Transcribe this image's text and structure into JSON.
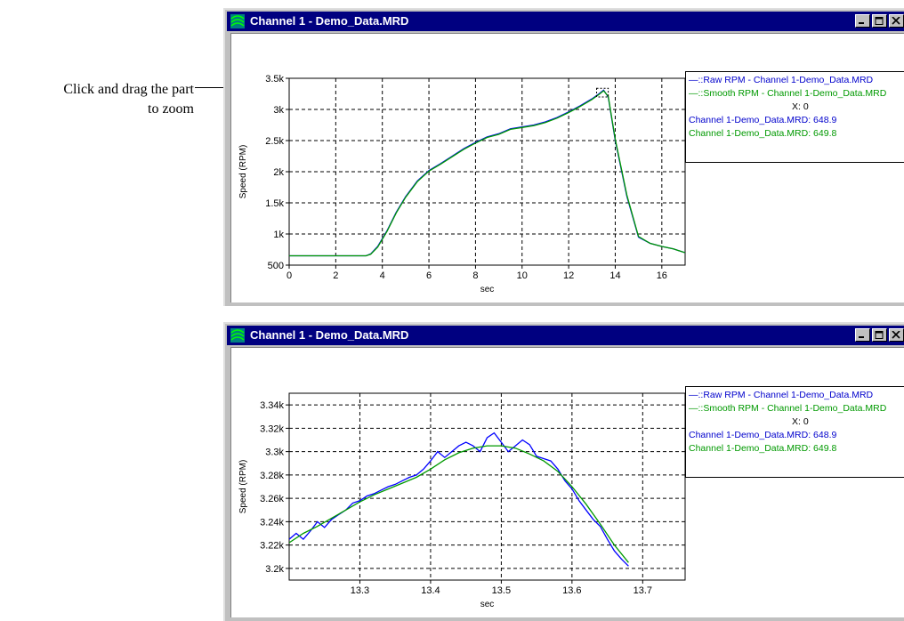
{
  "annotation": {
    "line1": "Click and drag the part",
    "line2": "to zoom"
  },
  "windows": [
    {
      "title": "Channel 1 - Demo_Data.MRD",
      "legend": {
        "raw": "—::Raw RPM - Channel 1-Demo_Data.MRD",
        "smooth": "—::Smooth RPM - Channel 1-Demo_Data.MRD",
        "x": "X: 0",
        "val1": "Channel 1-Demo_Data.MRD: 648.9",
        "val2": "Channel 1-Demo_Data.MRD: 649.8"
      }
    },
    {
      "title": "Channel 1 - Demo_Data.MRD",
      "legend": {
        "raw": "—::Raw RPM - Channel 1-Demo_Data.MRD",
        "smooth": "—::Smooth RPM - Channel 1-Demo_Data.MRD",
        "x": "X: 0",
        "val1": "Channel 1-Demo_Data.MRD: 648.9",
        "val2": "Channel 1-Demo_Data.MRD: 649.8"
      }
    }
  ],
  "colors": {
    "raw": "#0000ff",
    "smooth": "#009900",
    "titlebar": "#000080"
  },
  "icons": {
    "app": "channel-app-icon",
    "minimize": "minimize-icon",
    "maximize": "maximize-icon",
    "close": "close-icon"
  },
  "chart_data": [
    {
      "type": "line",
      "xlabel": "sec",
      "ylabel": "Speed (RPM)",
      "xlim": [
        0,
        17
      ],
      "ylim": [
        500,
        3500
      ],
      "xticks": [
        0,
        2,
        4,
        6,
        8,
        10,
        12,
        14,
        16
      ],
      "xtick_labels": [
        "0",
        "2",
        "4",
        "6",
        "8",
        "10",
        "12",
        "14",
        "16"
      ],
      "yticks": [
        500,
        1000,
        1500,
        2000,
        2500,
        3000,
        3500
      ],
      "ytick_labels": [
        "500",
        "1k",
        "1.5k",
        "2k",
        "2.5k",
        "3k",
        "3.5k"
      ],
      "grid": true,
      "zoom_box": {
        "x": [
          13.2,
          13.7
        ],
        "y": [
          3200,
          3340
        ]
      },
      "series": [
        {
          "name": "::Raw RPM - Channel 1-Demo_Data.MRD",
          "x": [
            0,
            3.3,
            3.5,
            3.8,
            4.2,
            4.6,
            5.0,
            5.5,
            6.0,
            6.5,
            7.0,
            7.5,
            8.0,
            8.5,
            9.0,
            9.5,
            10.0,
            10.5,
            11.0,
            11.5,
            12.0,
            12.5,
            13.0,
            13.3,
            13.5,
            13.7,
            14.0,
            14.5,
            15.0,
            15.5,
            16.0,
            16.5,
            17.0
          ],
          "y": [
            650,
            650,
            680,
            800,
            1050,
            1350,
            1600,
            1850,
            2020,
            2130,
            2250,
            2370,
            2470,
            2560,
            2610,
            2690,
            2720,
            2750,
            2800,
            2870,
            2960,
            3060,
            3170,
            3250,
            3310,
            3200,
            2500,
            1600,
            950,
            850,
            800,
            760,
            700
          ]
        },
        {
          "name": "::Smooth RPM - Channel 1-Demo_Data.MRD",
          "x": [
            0,
            3.3,
            3.5,
            3.8,
            4.2,
            4.6,
            5.0,
            5.5,
            6.0,
            6.5,
            7.0,
            7.5,
            8.0,
            8.5,
            9.0,
            9.5,
            10.0,
            10.5,
            11.0,
            11.5,
            12.0,
            12.5,
            13.0,
            13.3,
            13.5,
            13.7,
            14.0,
            14.5,
            15.0,
            15.5,
            16.0,
            16.5,
            17.0
          ],
          "y": [
            650,
            650,
            675,
            790,
            1040,
            1340,
            1590,
            1840,
            2010,
            2120,
            2240,
            2360,
            2460,
            2550,
            2600,
            2680,
            2710,
            2740,
            2790,
            2860,
            2950,
            3050,
            3160,
            3240,
            3300,
            3210,
            2520,
            1620,
            960,
            850,
            800,
            760,
            700
          ]
        }
      ]
    },
    {
      "type": "line",
      "xlabel": "sec",
      "ylabel": "Speed (RPM)",
      "xlim": [
        13.2,
        13.76
      ],
      "ylim": [
        3190,
        3350
      ],
      "xticks": [
        13.3,
        13.4,
        13.5,
        13.6,
        13.7
      ],
      "xtick_labels": [
        "13.3",
        "13.4",
        "13.5",
        "13.6",
        "13.7"
      ],
      "yticks": [
        3200,
        3220,
        3240,
        3260,
        3280,
        3300,
        3320,
        3340
      ],
      "ytick_labels": [
        "3.2k",
        "3.22k",
        "3.24k",
        "3.26k",
        "3.28k",
        "3.3k",
        "3.32k",
        "3.34k"
      ],
      "grid": true,
      "series": [
        {
          "name": "::Raw RPM - Channel 1-Demo_Data.MRD",
          "x": [
            13.2,
            13.21,
            13.22,
            13.23,
            13.24,
            13.25,
            13.26,
            13.27,
            13.28,
            13.29,
            13.3,
            13.31,
            13.32,
            13.33,
            13.34,
            13.35,
            13.36,
            13.37,
            13.38,
            13.39,
            13.4,
            13.41,
            13.42,
            13.43,
            13.44,
            13.45,
            13.46,
            13.47,
            13.48,
            13.49,
            13.5,
            13.51,
            13.52,
            13.53,
            13.54,
            13.55,
            13.56,
            13.57,
            13.58,
            13.59,
            13.6,
            13.61,
            13.62,
            13.63,
            13.64,
            13.65,
            13.66,
            13.67,
            13.68
          ],
          "y": [
            3225,
            3230,
            3225,
            3232,
            3240,
            3235,
            3242,
            3246,
            3250,
            3256,
            3258,
            3262,
            3264,
            3267,
            3270,
            3272,
            3275,
            3278,
            3280,
            3285,
            3292,
            3300,
            3295,
            3300,
            3305,
            3308,
            3305,
            3300,
            3312,
            3316,
            3308,
            3300,
            3305,
            3310,
            3306,
            3296,
            3294,
            3292,
            3285,
            3275,
            3268,
            3258,
            3250,
            3242,
            3236,
            3225,
            3215,
            3208,
            3202
          ]
        },
        {
          "name": "::Smooth RPM - Channel 1-Demo_Data.MRD",
          "x": [
            13.2,
            13.22,
            13.24,
            13.26,
            13.28,
            13.3,
            13.32,
            13.34,
            13.36,
            13.38,
            13.4,
            13.42,
            13.44,
            13.46,
            13.48,
            13.5,
            13.52,
            13.54,
            13.56,
            13.58,
            13.6,
            13.62,
            13.64,
            13.66,
            13.68
          ],
          "y": [
            3222,
            3230,
            3236,
            3243,
            3250,
            3257,
            3263,
            3268,
            3273,
            3278,
            3285,
            3293,
            3299,
            3303,
            3305,
            3305,
            3303,
            3298,
            3292,
            3283,
            3270,
            3255,
            3238,
            3220,
            3205
          ]
        }
      ]
    }
  ]
}
